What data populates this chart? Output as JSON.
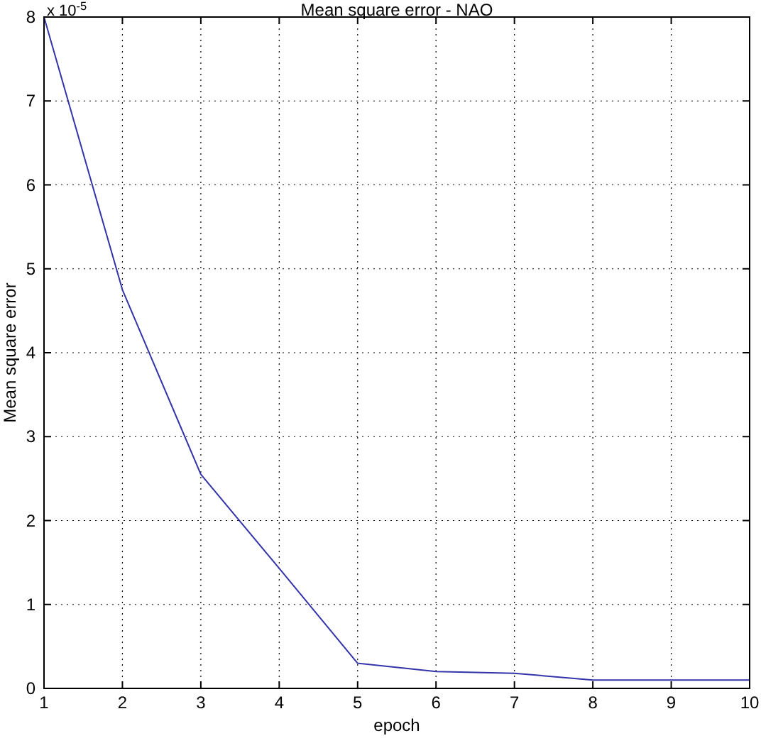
{
  "chart_data": {
    "type": "line",
    "title": "Mean square error - NAO",
    "xlabel": "epoch",
    "ylabel": "Mean square error",
    "annotations": [
      "x 10$^{-5}$"
    ],
    "x": [
      1,
      2,
      3,
      4,
      5,
      6,
      7,
      8,
      9,
      10
    ],
    "series": [
      {
        "color": "#3333aa",
        "values": [
          8,
          4.75,
          2.55,
          1.43,
          0.3,
          0.2,
          0.18,
          0.1,
          0.1,
          0.1
        ]
      }
    ],
    "xlim": [
      1,
      10
    ],
    "xticks": [
      1,
      2,
      3,
      4,
      5,
      6,
      7,
      8,
      9,
      10
    ],
    "ylim": [
      0,
      8
    ],
    "yticks": [
      0,
      1,
      2,
      3,
      4,
      5,
      6,
      7,
      8
    ],
    "grid": true,
    "marker": "none",
    "line_style": "solid"
  }
}
